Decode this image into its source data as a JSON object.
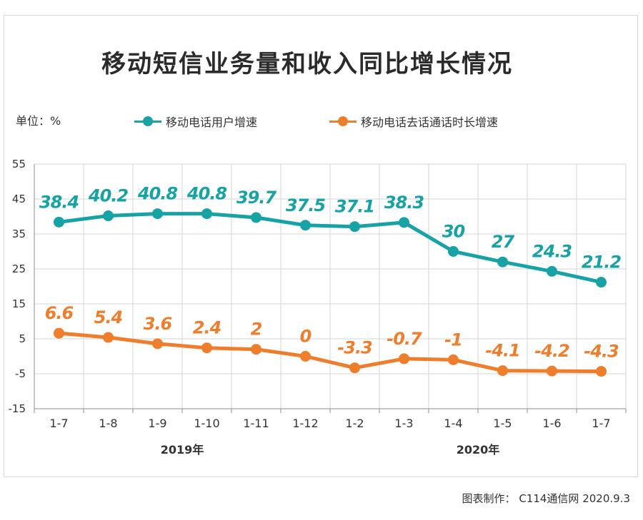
{
  "title": "移动短信业务量和收入同比增长情况",
  "unit_label": "单位：%",
  "legend": [
    {
      "label": "移动电话用户增速",
      "color": "#17a2a6"
    },
    {
      "label": "移动电话去话通话时长增速",
      "color": "#ee7d2c"
    }
  ],
  "credit": "图表制作：  C114通信网   2020.9.3",
  "chart_data": {
    "type": "line",
    "categories": [
      "1-7",
      "1-8",
      "1-9",
      "1-10",
      "1-11",
      "1-12",
      "1-2",
      "1-3",
      "1-4",
      "1-5",
      "1-6",
      "1-7"
    ],
    "year_labels": [
      {
        "text": "2019年",
        "category_index": 2.5
      },
      {
        "text": "2020年",
        "category_index": 8.5
      }
    ],
    "series": [
      {
        "name": "移动电话用户增速",
        "color": "#17a2a6",
        "values": [
          38.4,
          40.2,
          40.8,
          40.8,
          39.7,
          37.5,
          37.1,
          38.3,
          30,
          27,
          24.3,
          21.2
        ]
      },
      {
        "name": "移动电话去话通话时长增速",
        "color": "#ee7d2c",
        "values": [
          6.6,
          5.4,
          3.6,
          2.4,
          2,
          0,
          -3.3,
          -0.7,
          -1,
          -4.1,
          -4.2,
          -4.3
        ]
      }
    ],
    "y_ticks": [
      55,
      45,
      35,
      25,
      15,
      5,
      -5,
      -15
    ],
    "ylim": [
      -15,
      55
    ],
    "grid": true
  }
}
